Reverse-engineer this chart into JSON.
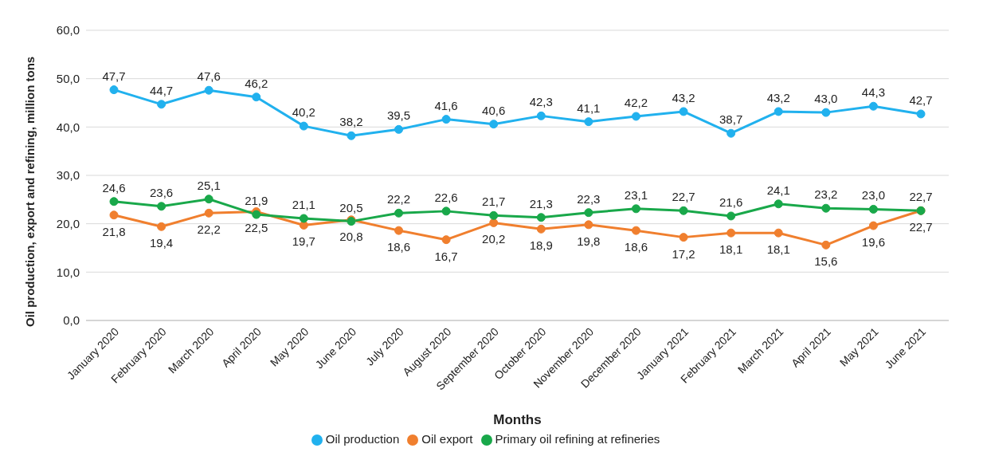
{
  "chart_data": {
    "type": "line",
    "xlabel": "Months",
    "ylabel": "Oil production, export and refining, million tons",
    "categories": [
      "January 2020",
      "February 2020",
      "March 2020",
      "April 2020",
      "May 2020",
      "June 2020",
      "July 2020",
      "August 2020",
      "September 2020",
      "October 2020",
      "November 2020",
      "December 2020",
      "January 2021",
      "February 2021",
      "March 2021",
      "April 2021",
      "May 2021",
      "June 2021"
    ],
    "series": [
      {
        "name": "Oil production",
        "color": "#21b1ee",
        "values": [
          47.7,
          44.7,
          47.6,
          46.2,
          40.2,
          38.2,
          39.5,
          41.6,
          40.6,
          42.3,
          41.1,
          42.2,
          43.2,
          38.7,
          43.2,
          43.0,
          44.3,
          42.7
        ],
        "value_labels": [
          "47,7",
          "44,7",
          "47,6",
          "46,2",
          "40,2",
          "38,2",
          "39,5",
          "41,6",
          "40,6",
          "42,3",
          "41,1",
          "42,2",
          "43,2",
          "38,7",
          "43,2",
          "43,0",
          "44,3",
          "42,7"
        ]
      },
      {
        "name": "Oil export",
        "color": "#f07f2e",
        "values": [
          21.8,
          19.4,
          22.2,
          22.5,
          19.7,
          20.8,
          18.6,
          16.7,
          20.2,
          18.9,
          19.8,
          18.6,
          17.2,
          18.1,
          18.1,
          15.6,
          19.6,
          22.7
        ],
        "value_labels": [
          "21,8",
          "19,4",
          "22,2",
          "22,5",
          "19,7",
          "20,8",
          "18,6",
          "16,7",
          "20,2",
          "18,9",
          "19,8",
          "18,6",
          "17,2",
          "18,1",
          "18,1",
          "15,6",
          "19,6",
          "22,7"
        ]
      },
      {
        "name": "Primary oil refining at refineries",
        "color": "#19a84a",
        "values": [
          24.6,
          23.6,
          25.1,
          21.9,
          21.1,
          20.5,
          22.2,
          22.6,
          21.7,
          21.3,
          22.3,
          23.1,
          22.7,
          21.6,
          24.1,
          23.2,
          23.0,
          22.7
        ],
        "value_labels": [
          "24,6",
          "23,6",
          "25,1",
          "21,9",
          "21,1",
          "20,5",
          "22,2",
          "22,6",
          "21,7",
          "21,3",
          "22,3",
          "23,1",
          "22,7",
          "21,6",
          "24,1",
          "23,2",
          "23,0",
          "22,7"
        ]
      }
    ],
    "ylim": [
      0,
      60
    ],
    "yticks": [
      {
        "value": 0,
        "label": "0,0"
      },
      {
        "value": 10,
        "label": "10,0"
      },
      {
        "value": 20,
        "label": "20,0"
      },
      {
        "value": 30,
        "label": "30,0"
      },
      {
        "value": 40,
        "label": "40,0"
      },
      {
        "value": 50,
        "label": "50,0"
      },
      {
        "value": 60,
        "label": "60,0"
      }
    ],
    "grid": "y",
    "legend": "bottom",
    "marker": "circle",
    "line_style": "solid"
  }
}
